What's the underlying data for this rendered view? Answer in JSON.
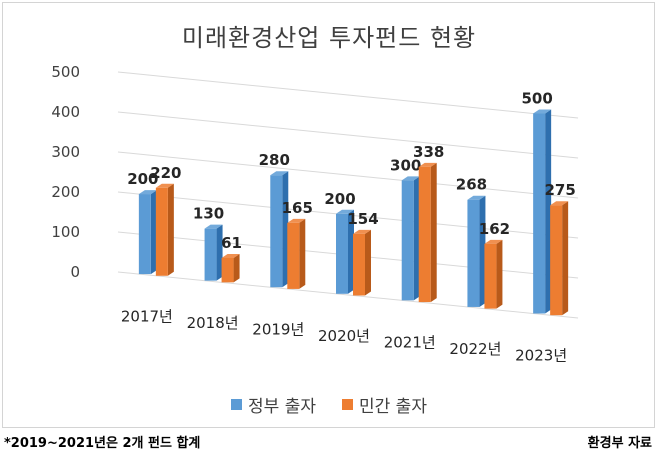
{
  "colors": {
    "government": "#5b9bd5",
    "government_dark": "#2e6fae",
    "private": "#ed7d31",
    "private_dark": "#b85a1a"
  },
  "chart_data": {
    "type": "bar",
    "title": "미래환경산업 투자펀드 현황",
    "categories": [
      "2017년",
      "2018년",
      "2019년",
      "2020년",
      "2021년",
      "2022년",
      "2023년"
    ],
    "series": [
      {
        "name": "정부 출자",
        "values": [
          200,
          130,
          280,
          200,
          300,
          268,
          500
        ]
      },
      {
        "name": "민간 출자",
        "values": [
          220,
          61,
          165,
          154,
          338,
          162,
          275
        ]
      }
    ],
    "yticks": [
      "0",
      "100",
      "200",
      "300",
      "400",
      "500"
    ],
    "ylim": [
      0,
      500
    ],
    "legend_position": "bottom",
    "grid": true
  },
  "footnote": "*2019~2021년은 2개 펀드 합계",
  "source": "환경부 자료"
}
